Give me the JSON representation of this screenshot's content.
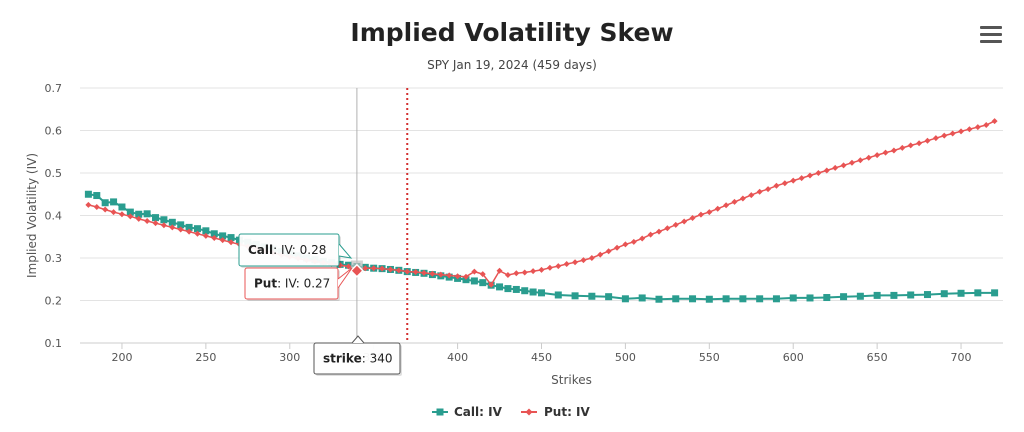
{
  "header": {
    "title": "Implied Volatility Skew",
    "subtitle": "SPY Jan 19, 2024 (459 days)",
    "menu_icon": "hamburger-menu-icon"
  },
  "chart_data": {
    "type": "line",
    "title": "Implied Volatility Skew",
    "subtitle": "SPY Jan 19, 2024 (459 days)",
    "xlabel": "Strikes",
    "ylabel": "Implied Volatility (IV)",
    "xlim": [
      175,
      725
    ],
    "ylim": [
      0.1,
      0.7
    ],
    "x_ticks": [
      200,
      250,
      300,
      350,
      400,
      450,
      500,
      550,
      600,
      650,
      700
    ],
    "y_ticks": [
      0.1,
      0.2,
      0.3,
      0.4,
      0.5,
      0.6,
      0.7
    ],
    "grid": true,
    "legend_position": "bottom-center",
    "reference_line_x": 370,
    "crosshair_x": 340,
    "series": [
      {
        "name": "Call: IV",
        "color": "#2a9d8f",
        "marker": "square",
        "x": [
          180,
          185,
          190,
          195,
          200,
          205,
          210,
          215,
          220,
          225,
          230,
          235,
          240,
          245,
          250,
          255,
          260,
          265,
          270,
          275,
          280,
          285,
          290,
          295,
          300,
          305,
          310,
          315,
          320,
          325,
          330,
          335,
          340,
          345,
          350,
          355,
          360,
          365,
          370,
          375,
          380,
          385,
          390,
          395,
          400,
          405,
          410,
          415,
          420,
          425,
          430,
          435,
          440,
          445,
          450,
          460,
          470,
          480,
          490,
          500,
          510,
          520,
          530,
          540,
          550,
          560,
          570,
          580,
          590,
          600,
          610,
          620,
          630,
          640,
          650,
          660,
          670,
          680,
          690,
          700,
          710,
          720
        ],
        "y": [
          0.45,
          0.447,
          0.43,
          0.432,
          0.42,
          0.408,
          0.403,
          0.404,
          0.395,
          0.39,
          0.384,
          0.378,
          0.372,
          0.369,
          0.364,
          0.357,
          0.352,
          0.348,
          0.342,
          0.337,
          0.332,
          0.326,
          0.321,
          0.315,
          0.31,
          0.305,
          0.3,
          0.296,
          0.292,
          0.289,
          0.285,
          0.283,
          0.28,
          0.278,
          0.276,
          0.275,
          0.273,
          0.271,
          0.268,
          0.266,
          0.264,
          0.261,
          0.258,
          0.255,
          0.252,
          0.249,
          0.246,
          0.242,
          0.236,
          0.232,
          0.228,
          0.226,
          0.223,
          0.22,
          0.218,
          0.213,
          0.211,
          0.21,
          0.209,
          0.204,
          0.206,
          0.203,
          0.204,
          0.204,
          0.203,
          0.204,
          0.204,
          0.204,
          0.204,
          0.206,
          0.206,
          0.207,
          0.209,
          0.21,
          0.212,
          0.212,
          0.213,
          0.214,
          0.216,
          0.217,
          0.218,
          0.218
        ]
      },
      {
        "name": "Put: IV",
        "color": "#e85454",
        "marker": "diamond",
        "x": [
          180,
          185,
          190,
          195,
          200,
          205,
          210,
          215,
          220,
          225,
          230,
          235,
          240,
          245,
          250,
          255,
          260,
          265,
          270,
          275,
          280,
          285,
          290,
          295,
          300,
          305,
          310,
          315,
          320,
          325,
          330,
          335,
          340,
          345,
          350,
          355,
          360,
          365,
          370,
          375,
          380,
          385,
          390,
          395,
          400,
          405,
          410,
          415,
          420,
          425,
          430,
          435,
          440,
          445,
          450,
          455,
          460,
          465,
          470,
          475,
          480,
          485,
          490,
          495,
          500,
          505,
          510,
          515,
          520,
          525,
          530,
          535,
          540,
          545,
          550,
          555,
          560,
          565,
          570,
          575,
          580,
          585,
          590,
          595,
          600,
          605,
          610,
          615,
          620,
          625,
          630,
          635,
          640,
          645,
          650,
          655,
          660,
          665,
          670,
          675,
          680,
          685,
          690,
          695,
          700,
          705,
          710,
          715,
          720
        ],
        "y": [
          0.425,
          0.42,
          0.414,
          0.408,
          0.403,
          0.398,
          0.392,
          0.387,
          0.382,
          0.377,
          0.372,
          0.367,
          0.362,
          0.357,
          0.352,
          0.347,
          0.342,
          0.337,
          0.332,
          0.327,
          0.322,
          0.317,
          0.312,
          0.307,
          0.303,
          0.299,
          0.295,
          0.292,
          0.289,
          0.286,
          0.283,
          0.28,
          0.27,
          0.276,
          0.276,
          0.275,
          0.273,
          0.271,
          0.268,
          0.267,
          0.265,
          0.263,
          0.261,
          0.259,
          0.257,
          0.256,
          0.268,
          0.262,
          0.237,
          0.27,
          0.26,
          0.264,
          0.266,
          0.269,
          0.272,
          0.277,
          0.281,
          0.286,
          0.29,
          0.295,
          0.3,
          0.308,
          0.316,
          0.324,
          0.332,
          0.338,
          0.346,
          0.355,
          0.362,
          0.37,
          0.378,
          0.386,
          0.394,
          0.402,
          0.408,
          0.416,
          0.424,
          0.432,
          0.44,
          0.448,
          0.456,
          0.462,
          0.47,
          0.476,
          0.482,
          0.488,
          0.494,
          0.5,
          0.506,
          0.512,
          0.518,
          0.524,
          0.53,
          0.536,
          0.542,
          0.548,
          0.553,
          0.559,
          0.565,
          0.57,
          0.576,
          0.582,
          0.588,
          0.593,
          0.598,
          0.603,
          0.608,
          0.613,
          0.622
        ]
      }
    ]
  },
  "tooltips": {
    "call_label": "Call: IV",
    "call_value": ": 0.28",
    "call_prefix": "Call",
    "call_suffix": ": IV",
    "put_prefix": "Put",
    "put_suffix": ": IV",
    "put_value": ": 0.27",
    "strike_label": "strike",
    "strike_value": ": 340"
  },
  "legend": {
    "call": "Call: IV",
    "put": "Put: IV"
  }
}
